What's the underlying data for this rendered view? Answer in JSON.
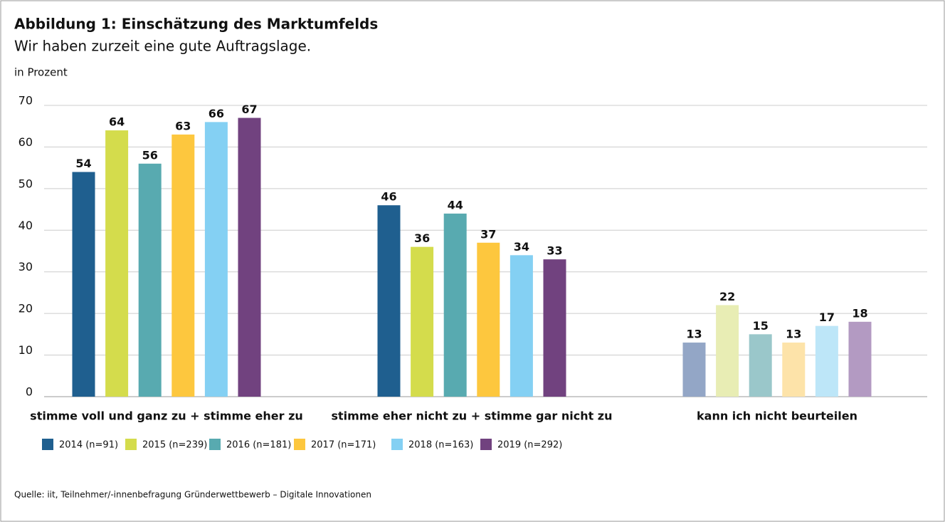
{
  "chart_data": {
    "type": "bar",
    "title": "Abbildung 1: Einschätzung des Marktumfelds",
    "subtitle": "Wir haben zurzeit eine gute Auftragslage.",
    "y_label": "in Prozent",
    "categories": [
      "stimme voll und ganz zu + stimme eher zu",
      "stimme eher nicht zu + stimme gar nicht zu",
      "kann ich nicht beurteilen"
    ],
    "series": [
      {
        "name": "2014 (n=91)",
        "colors": [
          "#1f5f8f",
          "#1f5f8f",
          "#93a6c6"
        ],
        "values": [
          54,
          46,
          13
        ]
      },
      {
        "name": "2015 (n=239)",
        "colors": [
          "#d4dc4c",
          "#d4dc4c",
          "#e8edb4"
        ],
        "values": [
          64,
          36,
          22
        ]
      },
      {
        "name": "2016 (n=181)",
        "colors": [
          "#58aab0",
          "#58aab0",
          "#9ac7ca"
        ],
        "values": [
          56,
          44,
          15
        ]
      },
      {
        "name": "2017 (n=171)",
        "colors": [
          "#fdc73e",
          "#fdc73e",
          "#fde3a9"
        ],
        "values": [
          63,
          37,
          13
        ]
      },
      {
        "name": "2018 (n=163)",
        "colors": [
          "#84d0f3",
          "#84d0f3",
          "#bde6f8"
        ],
        "values": [
          66,
          34,
          17
        ]
      },
      {
        "name": "2019 (n=292)",
        "colors": [
          "#71427f",
          "#71427f",
          "#b39ac2"
        ],
        "values": [
          67,
          33,
          18
        ]
      }
    ],
    "ylim": [
      0,
      70
    ],
    "yticks": [
      0,
      10,
      20,
      30,
      40,
      50,
      60,
      70
    ],
    "grid": true,
    "source": "Quelle: iit, Teilnehmer/-innenbefragung Gründerwettbewerb – Digitale Innovationen"
  }
}
